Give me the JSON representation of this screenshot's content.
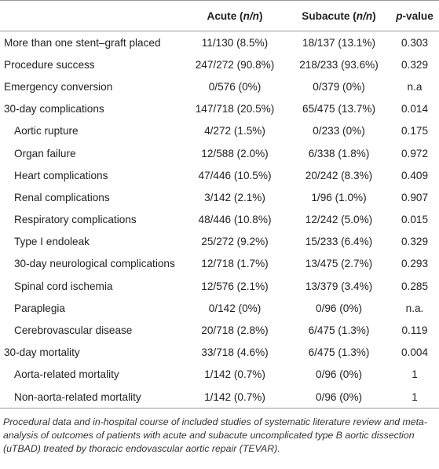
{
  "table": {
    "header": [
      [],
      [
        "Acute (",
        "n/n",
        ")"
      ],
      [
        "Subacute (",
        "n/n",
        ")"
      ],
      [
        "p",
        "-value"
      ]
    ],
    "rows": [
      {
        "cells": [
          "More than one stent–graft placed",
          "11/130 (8.5%)",
          "18/137 (13.1%)",
          "0.303"
        ]
      },
      {
        "cells": [
          "Procedure success",
          "247/272 (90.8%)",
          "218/233 (93.6%)",
          "0.329"
        ]
      },
      {
        "cells": [
          "Emergency conversion",
          "0/576 (0%)",
          "0/379 (0%)",
          "n.a"
        ]
      },
      {
        "cells": [
          "30-day complications",
          "147/718 (20.5%)",
          "65/475 (13.7%)",
          "0.014"
        ],
        "sub": [
          [
            "Aortic rupture",
            "4/272 (1.5%)",
            "0/233 (0%)",
            "0.175"
          ],
          [
            "Organ failure",
            "12/588 (2.0%)",
            "6/338 (1.8%)",
            "0.972"
          ],
          [
            "Heart complications",
            "47/446 (10.5%)",
            "20/242 (8.3%)",
            "0.409"
          ],
          [
            "Renal complications",
            "3/142 (2.1%)",
            "1/96 (1.0%)",
            "0.907"
          ],
          [
            "Respiratory complications",
            "48/446 (10.8%)",
            "12/242 (5.0%)",
            "0.015"
          ],
          [
            "Type I endoleak",
            "25/272 (9.2%)",
            "15/233 (6.4%)",
            "0.329"
          ],
          [
            "30-day neurological complications",
            "12/718 (1.7%)",
            "13/475 (2.7%)",
            "0.293"
          ],
          [
            "Spinal cord ischemia",
            "12/576 (2.1%)",
            "13/379 (3.4%)",
            "0.285"
          ],
          [
            "Paraplegia",
            "0/142 (0%)",
            "0/96 (0%)",
            "n.a."
          ],
          [
            "Cerebrovascular disease",
            "20/718 (2.8%)",
            "6/475 (1.3%)",
            "0.119"
          ]
        ]
      },
      {
        "cells": [
          "30-day mortality",
          "33/718 (4.6%)",
          "6/475 (1.3%)",
          "0.004"
        ],
        "sub": [
          [
            "Aorta-related mortality",
            "1/142 (0.7%)",
            "0/96 (0%)",
            "1"
          ],
          [
            "Non-aorta-related mortality",
            "1/142 (0.7%)",
            "0/96 (0%)",
            "1"
          ]
        ]
      }
    ],
    "caption": "Procedural data and in-hospital course of included studies of systematic literature review and meta-analysis of outcomes of patients with acute and subacute uncomplicated type B aortic dissection (uTBAD) treated by thoracic endovascular aortic repair (TEVAR)."
  }
}
